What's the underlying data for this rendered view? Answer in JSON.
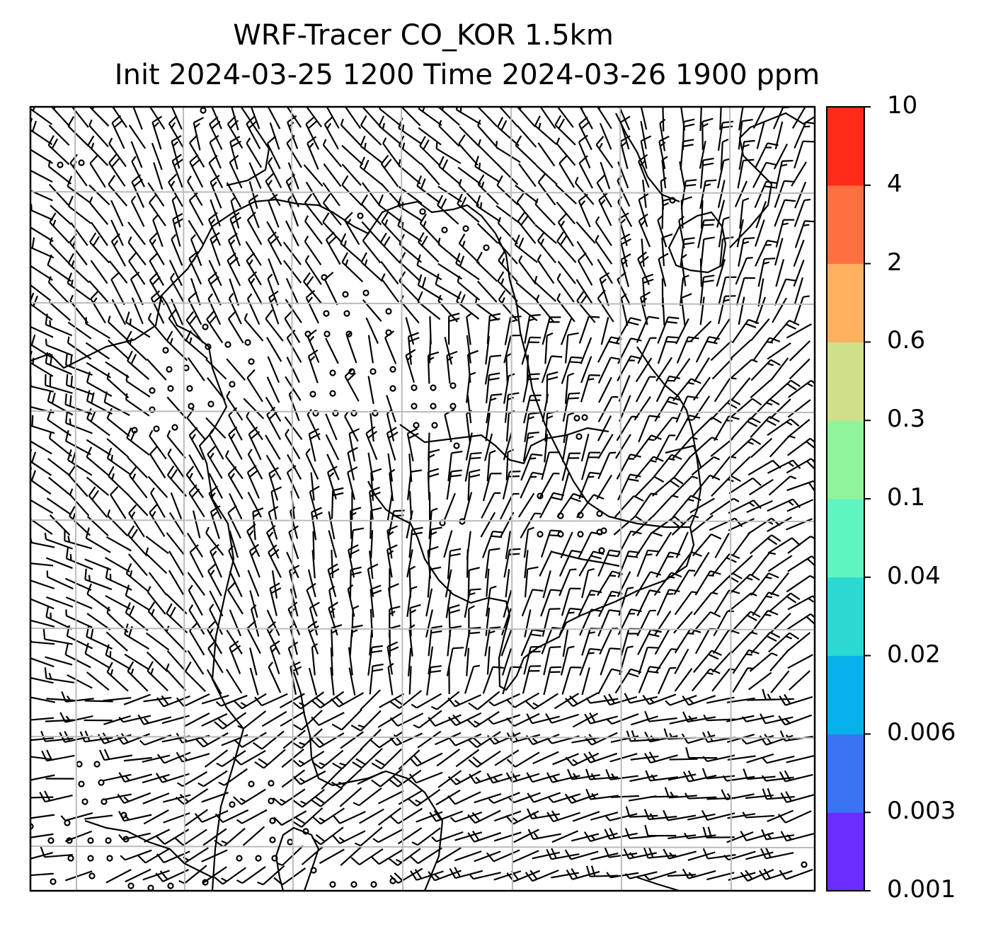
{
  "title": {
    "line1": "WRF-Tracer CO_KOR 1.5km",
    "line2": "Init 2024-03-25 1200 Time 2024-03-26 1900 ppm"
  },
  "colorbar": {
    "ticks": [
      "0.001",
      "0.003",
      "0.006",
      "0.02",
      "0.04",
      "0.1",
      "0.3",
      "0.6",
      "2",
      "4",
      "10"
    ],
    "colors": [
      "#6a2cff",
      "#3a74f2",
      "#06b0ea",
      "#2bd8d2",
      "#5ff5c0",
      "#90f49a",
      "#cfe08a",
      "#ffb060",
      "#ff7040",
      "#ff2a18"
    ]
  },
  "map": {
    "gridlines": "on",
    "coastlines": "on",
    "calm_marker": "circle",
    "barb_color": "#000000",
    "grid_color": "#bbbbbb"
  }
}
